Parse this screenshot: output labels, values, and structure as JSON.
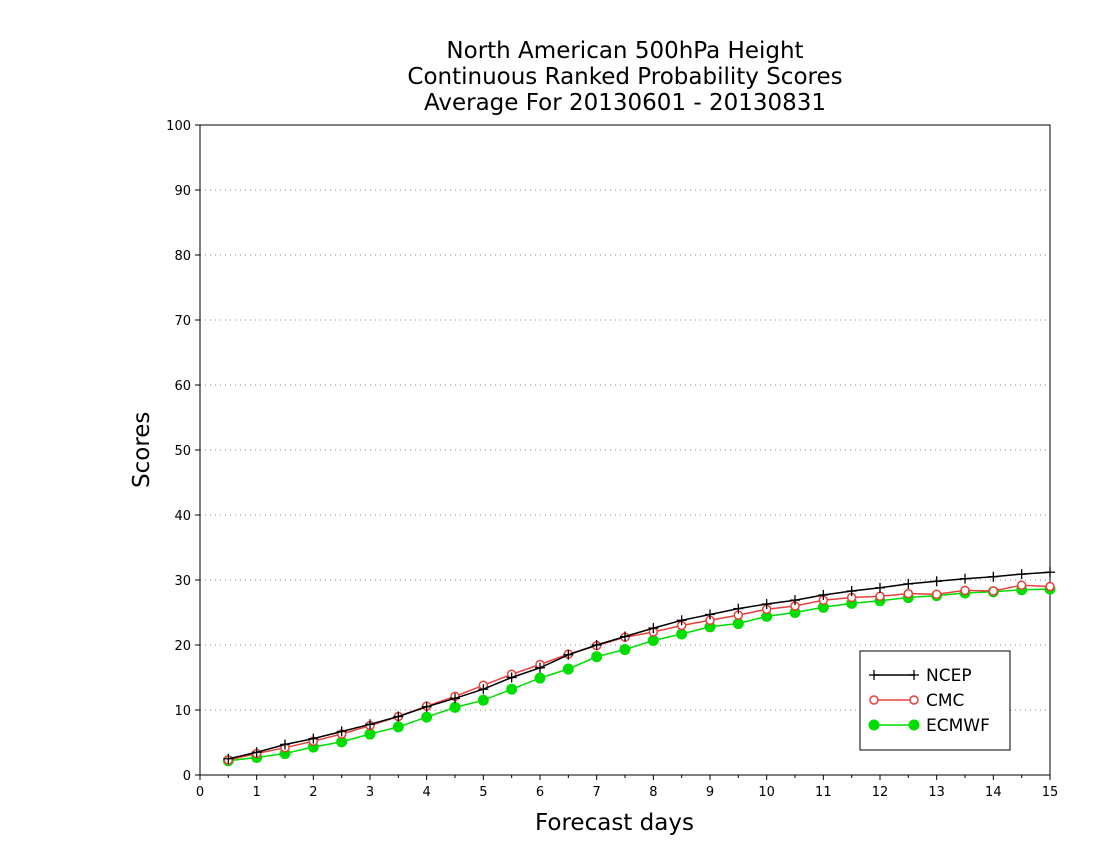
{
  "chart_data": {
    "type": "line",
    "title": [
      "North American 500hPa Height",
      "Continuous Ranked Probability Scores",
      "Average For 20130601 - 20130831"
    ],
    "xlabel": "Forecast days",
    "ylabel": "Scores",
    "xlim": [
      0,
      15
    ],
    "ylim": [
      0,
      100
    ],
    "xticks": [
      0,
      1,
      2,
      3,
      4,
      5,
      6,
      7,
      8,
      9,
      10,
      11,
      12,
      13,
      14,
      15
    ],
    "yticks": [
      0,
      10,
      20,
      30,
      40,
      50,
      60,
      70,
      80,
      90,
      100
    ],
    "grid": "horizontal dotted",
    "legend_position": "bottom-right",
    "x": [
      0.5,
      1,
      1.5,
      2,
      2.5,
      3,
      3.5,
      4,
      4.5,
      5,
      5.5,
      6,
      6.5,
      7,
      7.5,
      8,
      8.5,
      9,
      9.5,
      10,
      10.5,
      11,
      11.5,
      12,
      12.5,
      13,
      13.5,
      14,
      14.5,
      15
    ],
    "series": [
      {
        "name": "NCEP",
        "color": "#000000",
        "marker": "plus",
        "values": [
          2.5,
          3.5,
          4.7,
          5.6,
          6.7,
          7.8,
          9.0,
          10.5,
          11.8,
          13.2,
          15.0,
          16.5,
          18.5,
          20.0,
          21.3,
          22.6,
          23.8,
          24.7,
          25.6,
          26.3,
          26.9,
          27.7,
          28.3,
          28.8,
          29.4,
          29.8,
          30.2,
          30.5,
          30.9,
          31.2
        ]
      },
      {
        "name": "CMC",
        "color": "#e8403c",
        "marker": "open-circle",
        "values": [
          2.3,
          3.3,
          4.2,
          5.2,
          6.3,
          7.6,
          9.0,
          10.6,
          12.1,
          13.8,
          15.5,
          17.0,
          18.6,
          19.9,
          21.2,
          22.0,
          23.0,
          23.8,
          24.6,
          25.5,
          26.0,
          26.9,
          27.3,
          27.5,
          27.9,
          27.8,
          28.4,
          28.3,
          29.2,
          29.0
        ]
      },
      {
        "name": "ECMWF",
        "color": "#00dd00",
        "marker": "filled-circle",
        "values": [
          2.2,
          2.7,
          3.3,
          4.3,
          5.1,
          6.3,
          7.4,
          8.9,
          10.4,
          11.5,
          13.2,
          14.9,
          16.3,
          18.2,
          19.3,
          20.7,
          21.7,
          22.8,
          23.3,
          24.4,
          25.0,
          25.8,
          26.4,
          26.8,
          27.3,
          27.6,
          28.0,
          28.2,
          28.5,
          28.6
        ]
      }
    ]
  }
}
